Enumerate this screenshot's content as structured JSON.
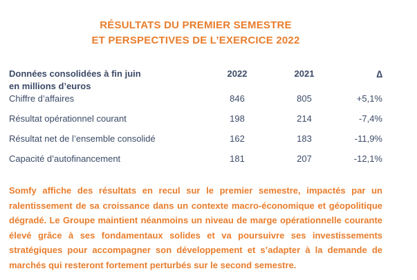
{
  "page": {
    "background_color": "#ffffff",
    "accent_orange": "#E87D2D",
    "text_navy": "#3B4A67"
  },
  "title": {
    "line1": "RÉSULTATS DU PREMIER SEMESTRE",
    "line2": "ET PERSPECTIVES DE L’EXERCICE 2022"
  },
  "table": {
    "header": {
      "label_line1": "Données consolidées à fin juin",
      "label_line2": "en millions d’euros",
      "col_2022": "2022",
      "col_2021": "2021",
      "col_delta": "∆"
    },
    "rows": [
      {
        "label": "Chiffre d’affaires",
        "y2022": "846",
        "y2021": "805",
        "delta": "+5,1%"
      },
      {
        "label": "Résultat opérationnel courant",
        "y2022": "198",
        "y2021": "214",
        "delta": "-7,4%"
      },
      {
        "label": "Résultat net de l’ensemble consolidé",
        "y2022": "162",
        "y2021": "183",
        "delta": "-11,9%"
      },
      {
        "label": "Capacité d’autofinancement",
        "y2022": "181",
        "y2021": "207",
        "delta": "-12,1%"
      }
    ]
  },
  "commentary": {
    "text": "Somfy affiche des résultats en recul sur le premier semestre, impactés par un ralentisse­ment de sa croissance dans un contexte macro-économique et géopolitique dégradé. Le Groupe maintient néanmoins un niveau de marge opérationnelle courante élevé grâce à ses fondamentaux solides et va poursuivre ses investissements stratégiques pour accompagner son développement et s’adapter à la demande de marchés qui resteront fortement pertur­bés sur le second semestre."
  }
}
